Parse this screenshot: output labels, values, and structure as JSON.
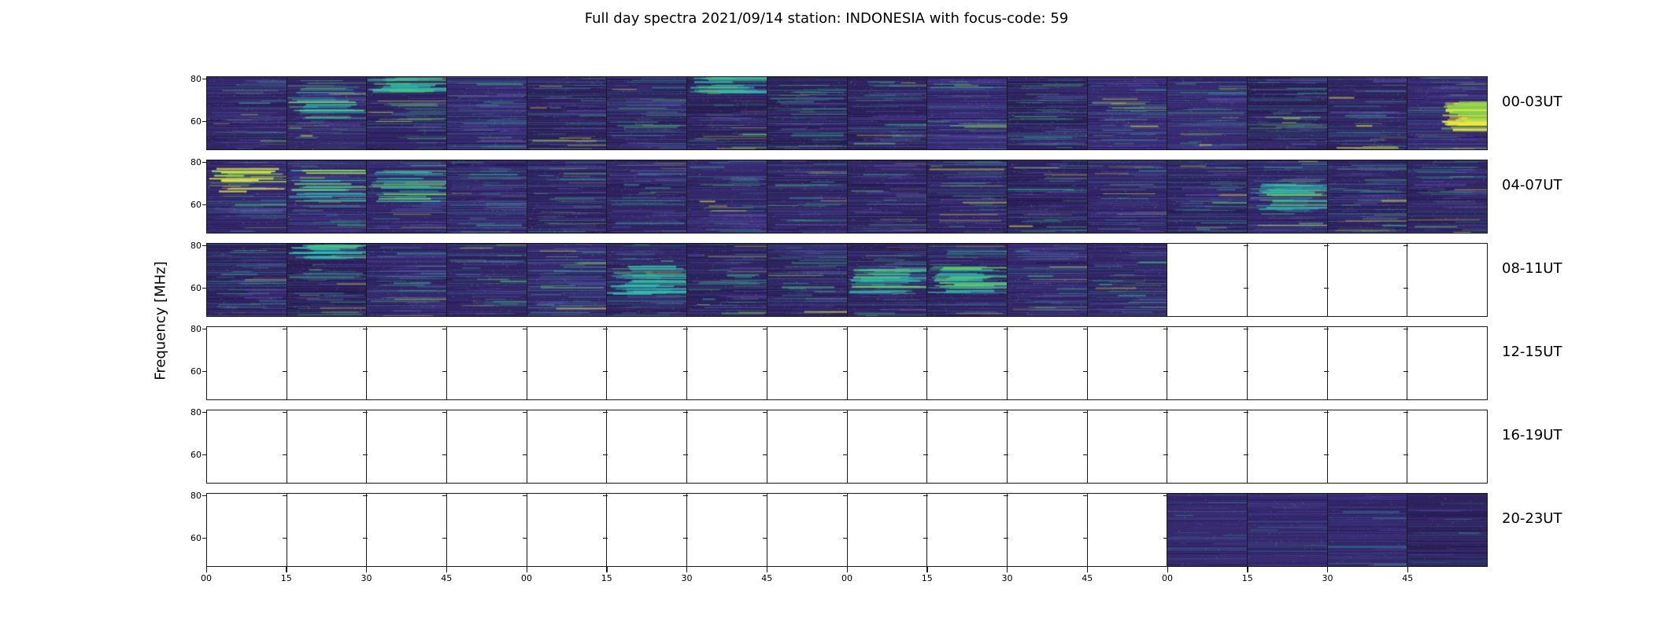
{
  "title": "Full day spectra 2021/09/14 station: INDONESIA with focus-code: 59",
  "ylabel": "Frequency [MHz]",
  "chart_data": {
    "type": "heatmap",
    "colormap": "viridis",
    "panels_per_row": 16,
    "x_tick_labels": [
      "00",
      "15",
      "30",
      "45",
      "00",
      "15",
      "30",
      "45",
      "00",
      "15",
      "30",
      "45",
      "00",
      "15",
      "30",
      "45"
    ],
    "y_tick_labels": [
      "80",
      "60"
    ],
    "y_ticks": [
      80,
      60
    ],
    "colors": {
      "panel_base": "#352a6e",
      "dark_band": "#191040",
      "light_band": "#4c3e96",
      "teal": "#2fa393",
      "green": "#4fc06a",
      "yellow": "#e8e337",
      "axis": "#1a1a1a",
      "empty_panel": "#ffffff"
    },
    "rows": [
      {
        "label": "00-03UT",
        "texture": "rich",
        "filled": [
          1,
          1,
          1,
          1,
          1,
          1,
          1,
          1,
          1,
          1,
          1,
          1,
          1,
          1,
          1,
          1
        ]
      },
      {
        "label": "04-07UT",
        "texture": "rich",
        "filled": [
          1,
          1,
          1,
          1,
          1,
          1,
          1,
          1,
          1,
          1,
          1,
          1,
          1,
          1,
          1,
          1
        ]
      },
      {
        "label": "08-11UT",
        "texture": "rich",
        "filled": [
          1,
          1,
          1,
          1,
          1,
          1,
          1,
          1,
          1,
          1,
          1,
          1,
          0,
          0,
          0,
          0
        ]
      },
      {
        "label": "12-15UT",
        "texture": "none",
        "filled": [
          0,
          0,
          0,
          0,
          0,
          0,
          0,
          0,
          0,
          0,
          0,
          0,
          0,
          0,
          0,
          0
        ]
      },
      {
        "label": "16-19UT",
        "texture": "none",
        "filled": [
          0,
          0,
          0,
          0,
          0,
          0,
          0,
          0,
          0,
          0,
          0,
          0,
          0,
          0,
          0,
          0
        ]
      },
      {
        "label": "20-23UT",
        "texture": "sparse",
        "filled": [
          0,
          0,
          0,
          0,
          0,
          0,
          0,
          0,
          0,
          0,
          0,
          0,
          1,
          1,
          1,
          1
        ]
      }
    ],
    "features": [
      {
        "row": 0,
        "panel": 1,
        "kind": "teal-streaks"
      },
      {
        "row": 0,
        "panel": 2,
        "kind": "teal-top"
      },
      {
        "row": 0,
        "panel": 6,
        "kind": "teal-top"
      },
      {
        "row": 0,
        "panel": 15,
        "kind": "yellow-blob"
      },
      {
        "row": 1,
        "panel": 0,
        "kind": "yellow-streaks"
      },
      {
        "row": 1,
        "panel": 1,
        "kind": "teal-streaks"
      },
      {
        "row": 1,
        "panel": 2,
        "kind": "teal-streaks"
      },
      {
        "row": 1,
        "panel": 13,
        "kind": "teal-mid"
      },
      {
        "row": 2,
        "panel": 1,
        "kind": "teal-top"
      },
      {
        "row": 2,
        "panel": 5,
        "kind": "teal-mid"
      },
      {
        "row": 2,
        "panel": 8,
        "kind": "teal-mid"
      },
      {
        "row": 2,
        "panel": 9,
        "kind": "teal-mid"
      }
    ]
  }
}
